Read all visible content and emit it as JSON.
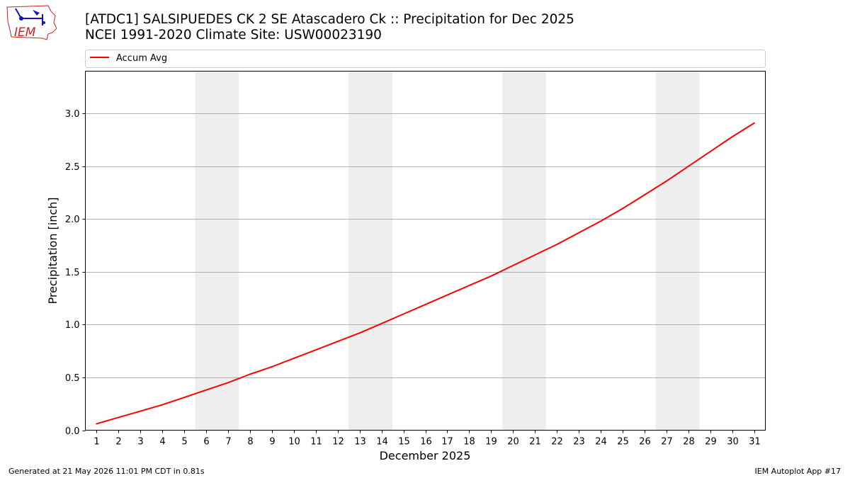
{
  "header": {
    "title_line1": "[ATDC1] SALSIPUEDES CK 2 SE Atascadero Ck :: Precipitation for Dec 2025",
    "title_line2": "NCEI 1991-2020 Climate Site: USW00023190"
  },
  "logo": {
    "text": "IEM",
    "icon": "iem-iowa-logo-icon",
    "color": "#cc2222"
  },
  "footer": {
    "generated": "Generated at 21 May 2026 11:01 PM CDT in 0.81s",
    "app": "IEM Autoplot App #17"
  },
  "chart_data": {
    "type": "line",
    "title": "[ATDC1] SALSIPUEDES CK 2 SE Atascadero Ck :: Precipitation for Dec 2025",
    "subtitle": "NCEI 1991-2020 Climate Site: USW00023190",
    "xlabel": "December 2025",
    "ylabel": "Precipitation [inch]",
    "x": [
      1,
      2,
      3,
      4,
      5,
      6,
      7,
      8,
      9,
      10,
      11,
      12,
      13,
      14,
      15,
      16,
      17,
      18,
      19,
      20,
      21,
      22,
      23,
      24,
      25,
      26,
      27,
      28,
      29,
      30,
      31
    ],
    "xlim": [
      0.5,
      31.5
    ],
    "ylim": [
      0,
      3.4
    ],
    "yticks": [
      "0.0",
      "0.5",
      "1.0",
      "1.5",
      "2.0",
      "2.5",
      "3.0"
    ],
    "grid": "horizontal",
    "legend": {
      "position": "top",
      "entries": [
        "Accum Avg"
      ]
    },
    "weekend_shading": [
      [
        5.5,
        7.5
      ],
      [
        12.5,
        14.5
      ],
      [
        19.5,
        21.5
      ],
      [
        26.5,
        28.5
      ]
    ],
    "colors": {
      "line": "#ff0000",
      "shade": "#eeeeee",
      "grid": "#b0b0b0"
    },
    "series": [
      {
        "name": "Accum Avg",
        "values": [
          0.06,
          0.12,
          0.18,
          0.24,
          0.31,
          0.38,
          0.45,
          0.53,
          0.6,
          0.68,
          0.76,
          0.84,
          0.92,
          1.01,
          1.1,
          1.19,
          1.28,
          1.37,
          1.46,
          1.56,
          1.66,
          1.76,
          1.87,
          1.98,
          2.1,
          2.23,
          2.36,
          2.5,
          2.64,
          2.78,
          2.91
        ]
      }
    ]
  }
}
